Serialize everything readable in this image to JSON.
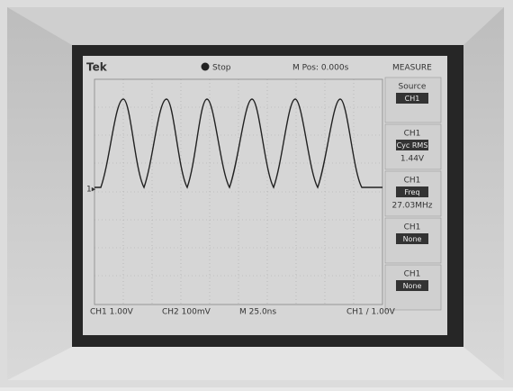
{
  "header": {
    "brand": "Tek",
    "status": "Stop",
    "position": "M Pos: 0.000s",
    "menu_title": "MEASURE"
  },
  "menu": [
    {
      "label": "Source",
      "value": "CH1"
    },
    {
      "label": "CH1",
      "value": "Cyc RMS",
      "reading": "1.44V"
    },
    {
      "label": "CH1",
      "value": "Freq",
      "reading": "27.03MHz"
    },
    {
      "label": "CH1",
      "value": "None"
    },
    {
      "label": "CH1",
      "value": "None"
    }
  ],
  "footer": {
    "ch1": "CH1  1.00V",
    "ch2": "CH2  100mV",
    "time": "M 25.0ns",
    "trigger": "CH1 / 1.00V"
  }
}
